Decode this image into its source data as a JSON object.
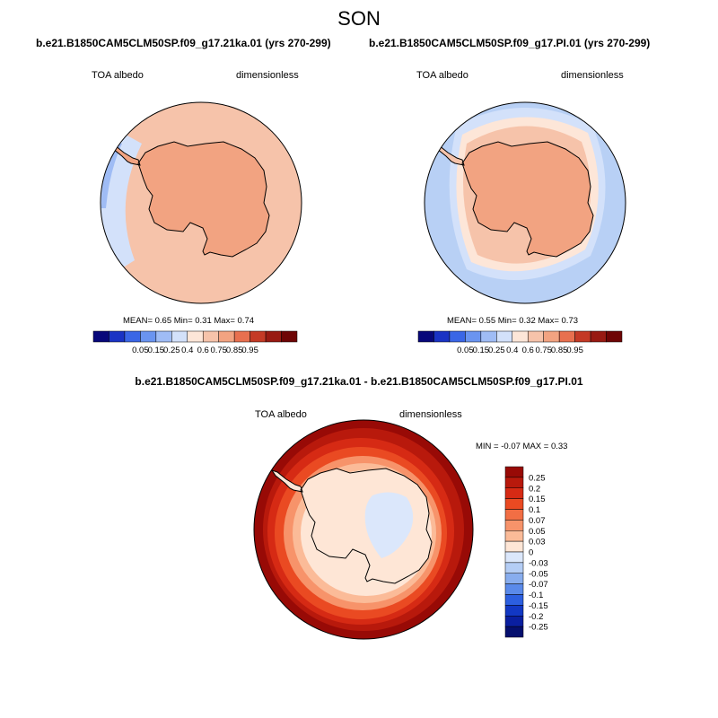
{
  "figure": {
    "season": "SON"
  },
  "panels": [
    {
      "title": "b.e21.B1850CAM5CLM50SP.f09_g17.21ka.01 (yrs 270-299)",
      "variable": "TOA albedo",
      "units": "dimensionless",
      "stats": "MEAN=   0.65  Min=   0.31  Max=   0.74",
      "ocean_color": "#f6c3aa",
      "land_color": "#f2a381"
    },
    {
      "title": "b.e21.B1850CAM5CLM50SP.f09_g17.PI.01 (yrs 270-299)",
      "variable": "TOA albedo",
      "units": "dimensionless",
      "stats": "MEAN=   0.55  Min=   0.32  Max=   0.73",
      "ocean_color": "#b8d0f5",
      "land_color": "#f2a381"
    },
    {
      "title": "b.e21.B1850CAM5CLM50SP.f09_g17.21ka.01 - b.e21.B1850CAM5CLM50SP.f09_g17.PI.01",
      "variable": "TOA albedo",
      "units": "dimensionless",
      "stats": "MIN =  -0.07 MAX =   0.33"
    }
  ],
  "colorbar_main": {
    "labels": [
      "0.05",
      "0.15",
      "0.25",
      "0.4",
      "0.6",
      "0.75",
      "0.85",
      "0.95"
    ],
    "colors": [
      "#08087a",
      "#1a33c4",
      "#3a66e6",
      "#6a94f0",
      "#9fbcf5",
      "#d3e1fa",
      "#fde6d8",
      "#f6c3aa",
      "#f2a381",
      "#e8704f",
      "#c43a26",
      "#981a12",
      "#6e0505"
    ]
  },
  "colorbar_diff": {
    "labels": [
      "0.25",
      "0.2",
      "0.15",
      "0.1",
      "0.07",
      "0.05",
      "0.03",
      "0",
      "-0.03",
      "-0.05",
      "-0.07",
      "-0.1",
      "-0.15",
      "-0.2",
      "-0.25"
    ],
    "colors": [
      "#980a06",
      "#b8190c",
      "#d62a14",
      "#ea4a22",
      "#f26e44",
      "#f7936a",
      "#fbbb98",
      "#fee6d6",
      "#dbe7fb",
      "#b4cdf5",
      "#88adee",
      "#5a8aea",
      "#2c5fe0",
      "#1238c4",
      "#0a1fa0",
      "#050f6e"
    ]
  }
}
